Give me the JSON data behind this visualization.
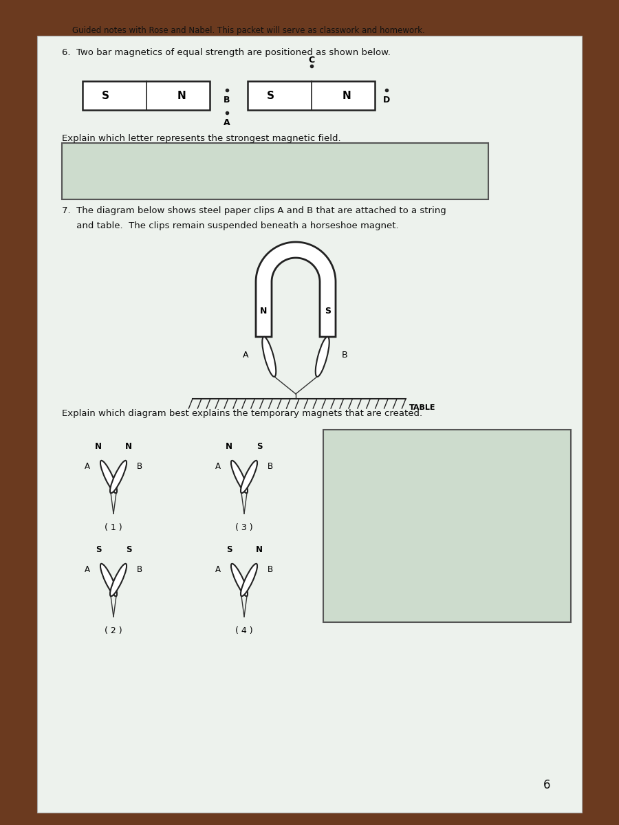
{
  "title_line": "Guided notes with Rose and Nabel. This packet will serve as classwork and homework.",
  "q6_text": "6.  Two bar magnetics of equal strength are positioned as shown below.",
  "q6_explain": "Explain which letter represents the strongest magnetic field.",
  "q7_text_1": "7.  The diagram below shows steel paper clips A and B that are attached to a string",
  "q7_text_2": "     and table.  The clips remain suspended beneath a horseshoe magnet.",
  "q7_explain": "Explain which diagram best explains the temporary magnets that are created.",
  "table_label": "TABLE",
  "page_number": "6",
  "paper_color": "#edf2ed",
  "box_color": "#cddccd",
  "dark_brown": "#6B3A1F",
  "light_brown": "#8B5A2B"
}
